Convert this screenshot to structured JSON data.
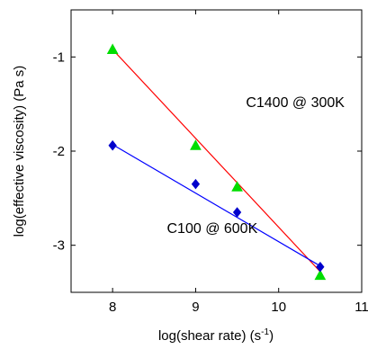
{
  "chart_data": {
    "type": "scatter",
    "xlabel_main": "log(shear rate) (s",
    "xlabel_sup": "-1",
    "xlabel_end": ")",
    "ylabel": "log(effective viscosity) (Pa s)",
    "xlim": [
      7.5,
      11
    ],
    "ylim": [
      -3.5,
      -0.5
    ],
    "xticks": [
      8,
      9,
      10,
      11
    ],
    "yticks": [
      -1,
      -2,
      -3
    ],
    "grid": false,
    "series": [
      {
        "marker": "triangle",
        "color": "#00dd00",
        "line_color": "#ff0000",
        "x": [
          8.0,
          9.0,
          9.5,
          10.5
        ],
        "y": [
          -0.92,
          -1.94,
          -2.38,
          -3.32
        ],
        "fit": [
          [
            8.0,
            -0.92
          ],
          [
            10.5,
            -3.28
          ]
        ]
      },
      {
        "marker": "diamond",
        "color": "#0000cc",
        "line_color": "#0000ff",
        "x": [
          8.0,
          9.0,
          9.5,
          10.5
        ],
        "y": [
          -1.94,
          -2.35,
          -2.65,
          -3.23
        ],
        "fit": [
          [
            8.0,
            -1.93
          ],
          [
            10.5,
            -3.22
          ]
        ]
      }
    ],
    "annotations": [
      {
        "text": "C1400 @ 300K",
        "x": 10.2,
        "y": -1.53
      },
      {
        "text": "C100 @ 600K",
        "x": 9.2,
        "y": -2.87
      }
    ]
  }
}
